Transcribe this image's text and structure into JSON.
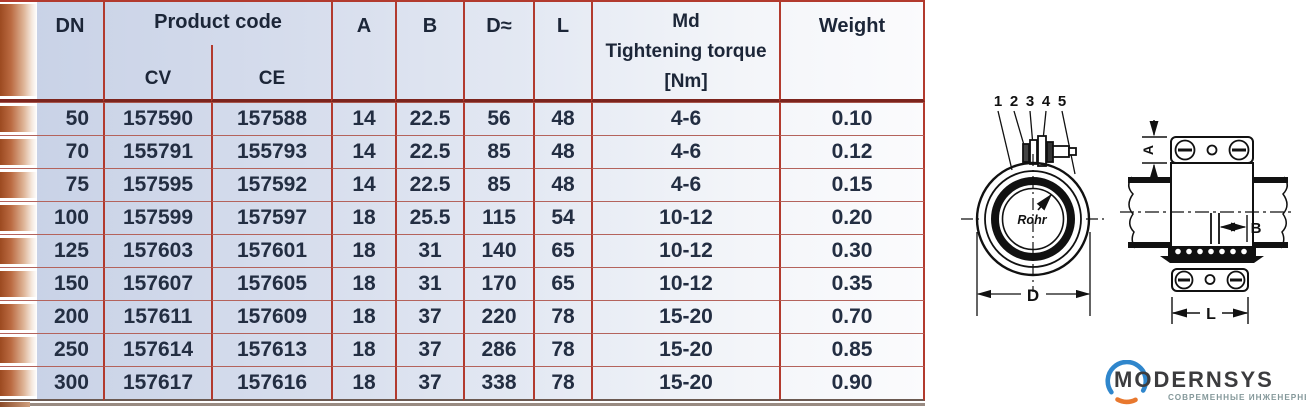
{
  "table": {
    "headers": {
      "dn": "DN",
      "product_code": "Product code",
      "cv": "CV",
      "ce": "CE",
      "a": "A",
      "b": "B",
      "d": "D≈",
      "l": "L",
      "md_line1": "Md",
      "md_line2": "Tightening torque",
      "md_line3": "[Nm]",
      "weight": "Weight"
    },
    "rows": [
      {
        "dn": "50",
        "cv": "157590",
        "ce": "157588",
        "a": "14",
        "b": "22.5",
        "d": "56",
        "l": "48",
        "md": "4-6",
        "weight": "0.10"
      },
      {
        "dn": "70",
        "cv": "155791",
        "ce": "155793",
        "a": "14",
        "b": "22.5",
        "d": "85",
        "l": "48",
        "md": "4-6",
        "weight": "0.12"
      },
      {
        "dn": "75",
        "cv": "157595",
        "ce": "157592",
        "a": "14",
        "b": "22.5",
        "d": "85",
        "l": "48",
        "md": "4-6",
        "weight": "0.15"
      },
      {
        "dn": "100",
        "cv": "157599",
        "ce": "157597",
        "a": "18",
        "b": "25.5",
        "d": "115",
        "l": "54",
        "md": "10-12",
        "weight": "0.20"
      },
      {
        "dn": "125",
        "cv": "157603",
        "ce": "157601",
        "a": "18",
        "b": "31",
        "d": "140",
        "l": "65",
        "md": "10-12",
        "weight": "0.30"
      },
      {
        "dn": "150",
        "cv": "157607",
        "ce": "157605",
        "a": "18",
        "b": "31",
        "d": "170",
        "l": "65",
        "md": "10-12",
        "weight": "0.35"
      },
      {
        "dn": "200",
        "cv": "157611",
        "ce": "157609",
        "a": "18",
        "b": "37",
        "d": "220",
        "l": "78",
        "md": "15-20",
        "weight": "0.70"
      },
      {
        "dn": "250",
        "cv": "157614",
        "ce": "157613",
        "a": "18",
        "b": "37",
        "d": "286",
        "l": "78",
        "md": "15-20",
        "weight": "0.85"
      },
      {
        "dn": "300",
        "cv": "157617",
        "ce": "157616",
        "a": "18",
        "b": "37",
        "d": "338",
        "l": "78",
        "md": "15-20",
        "weight": "0.90"
      }
    ]
  },
  "diagram": {
    "cross_section": {
      "part_numbers": [
        "1",
        "2",
        "3",
        "4",
        "5"
      ],
      "pipe_label": "Rohr",
      "dim_label": "D"
    },
    "side_view": {
      "dim_a": "A",
      "dim_b": "B",
      "dim_l": "L"
    }
  },
  "logo": {
    "name": "MODERNSYS",
    "tagline": "СОВРЕМЕННЫЕ ИНЖЕНЕРНЫЕ СИСТЕМЫ",
    "blue": "#2f86cc",
    "orange": "#e8782e"
  },
  "colors": {
    "grid_red": "#b23a2e",
    "header_rule_dark": "#7c241d",
    "row_line": "#b4635c",
    "tab_orange": "#9c4a20",
    "cell_blue": "#c7d1e6",
    "text_navy": "#232e42"
  }
}
